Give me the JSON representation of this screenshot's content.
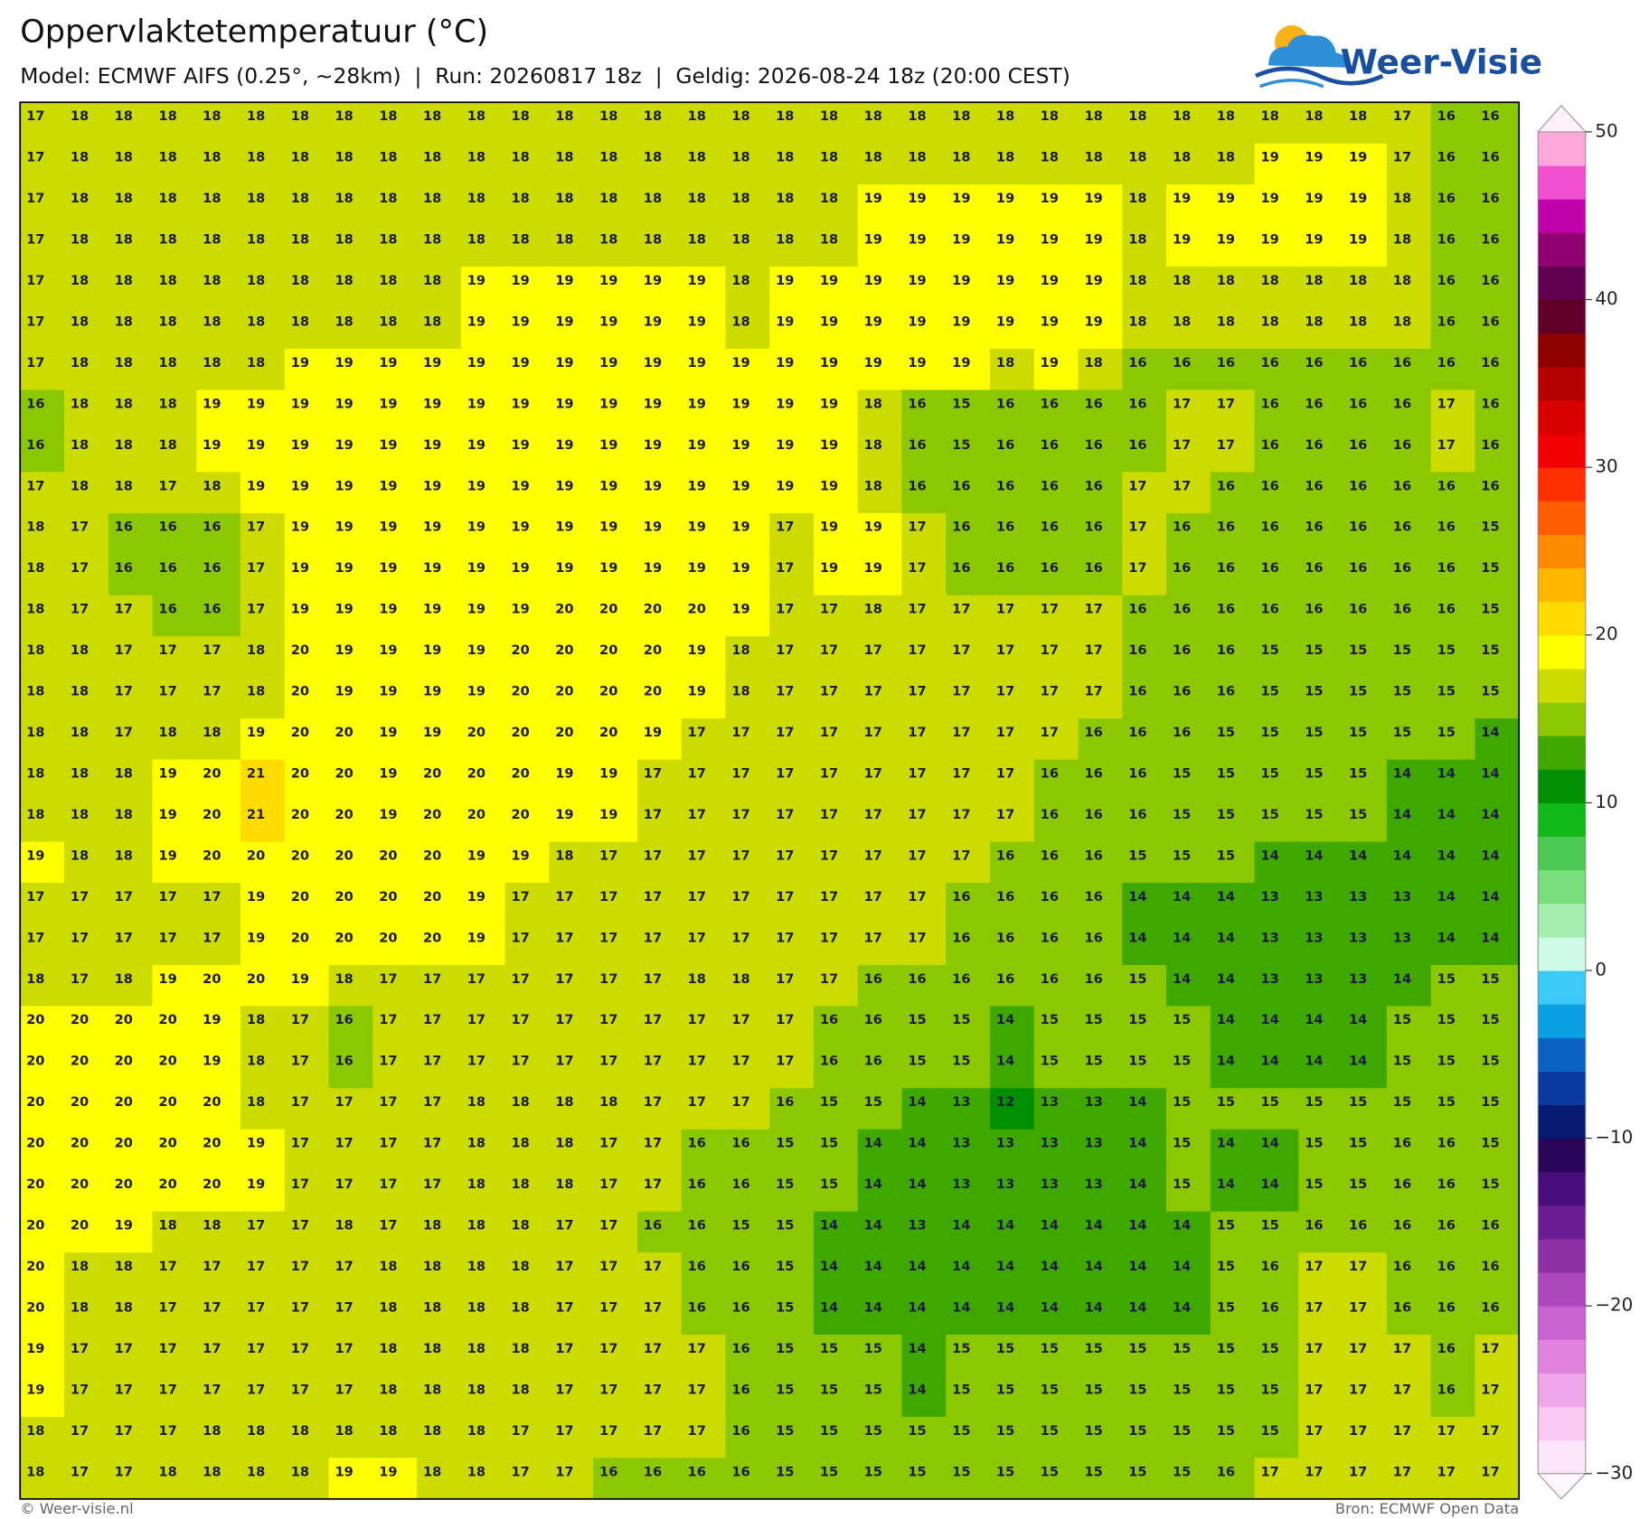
{
  "header": {
    "title": "Oppervlaktetemperatuur (°C)",
    "subtitle": "Model: ECMWF AIFS (0.25°, ~28km)  |  Run: 20260817 18z  |  Geldig: 2026-08-24 18z (20:00 CEST)",
    "logo": "Weer-Visie"
  },
  "map": {
    "values": [
      [
        17,
        18,
        18,
        18,
        18,
        18,
        18,
        18,
        18,
        18,
        18,
        18,
        18,
        18,
        18,
        18,
        18,
        18,
        18,
        18,
        18,
        18,
        18,
        18,
        18,
        18,
        18,
        18,
        18,
        18,
        18,
        17,
        16,
        16
      ],
      [
        17,
        18,
        18,
        18,
        18,
        18,
        18,
        18,
        18,
        18,
        18,
        18,
        18,
        18,
        18,
        18,
        18,
        18,
        18,
        18,
        18,
        18,
        18,
        18,
        18,
        18,
        18,
        18,
        19,
        19,
        19,
        17,
        16,
        16
      ],
      [
        17,
        18,
        18,
        18,
        18,
        18,
        18,
        18,
        18,
        18,
        18,
        18,
        18,
        18,
        18,
        18,
        18,
        18,
        18,
        19,
        19,
        19,
        19,
        19,
        19,
        18,
        19,
        19,
        19,
        19,
        19,
        18,
        16,
        16
      ],
      [
        17,
        18,
        18,
        18,
        18,
        18,
        18,
        18,
        18,
        18,
        18,
        18,
        18,
        18,
        18,
        18,
        18,
        18,
        18,
        19,
        19,
        19,
        19,
        19,
        19,
        18,
        19,
        19,
        19,
        19,
        19,
        18,
        16,
        16
      ],
      [
        17,
        18,
        18,
        18,
        18,
        18,
        18,
        18,
        18,
        18,
        19,
        19,
        19,
        19,
        19,
        19,
        18,
        19,
        19,
        19,
        19,
        19,
        19,
        19,
        19,
        18,
        18,
        18,
        18,
        18,
        18,
        18,
        16,
        16
      ],
      [
        17,
        18,
        18,
        18,
        18,
        18,
        18,
        18,
        18,
        18,
        19,
        19,
        19,
        19,
        19,
        19,
        18,
        19,
        19,
        19,
        19,
        19,
        19,
        19,
        19,
        18,
        18,
        18,
        18,
        18,
        18,
        18,
        16,
        16
      ],
      [
        17,
        18,
        18,
        18,
        18,
        18,
        19,
        19,
        19,
        19,
        19,
        19,
        19,
        19,
        19,
        19,
        19,
        19,
        19,
        19,
        19,
        19,
        18,
        19,
        18,
        16,
        16,
        16,
        16,
        16,
        16,
        16,
        16,
        16
      ],
      [
        16,
        18,
        18,
        18,
        19,
        19,
        19,
        19,
        19,
        19,
        19,
        19,
        19,
        19,
        19,
        19,
        19,
        19,
        19,
        18,
        16,
        15,
        16,
        16,
        16,
        16,
        17,
        17,
        16,
        16,
        16,
        16,
        17,
        16
      ],
      [
        16,
        18,
        18,
        18,
        19,
        19,
        19,
        19,
        19,
        19,
        19,
        19,
        19,
        19,
        19,
        19,
        19,
        19,
        19,
        18,
        16,
        15,
        16,
        16,
        16,
        16,
        17,
        17,
        16,
        16,
        16,
        16,
        17,
        16
      ],
      [
        17,
        18,
        18,
        17,
        18,
        19,
        19,
        19,
        19,
        19,
        19,
        19,
        19,
        19,
        19,
        19,
        19,
        19,
        19,
        18,
        16,
        16,
        16,
        16,
        16,
        17,
        17,
        16,
        16,
        16,
        16,
        16,
        16,
        16
      ],
      [
        18,
        17,
        16,
        16,
        16,
        17,
        19,
        19,
        19,
        19,
        19,
        19,
        19,
        19,
        19,
        19,
        19,
        17,
        19,
        19,
        17,
        16,
        16,
        16,
        16,
        17,
        16,
        16,
        16,
        16,
        16,
        16,
        16,
        15
      ],
      [
        18,
        17,
        16,
        16,
        16,
        17,
        19,
        19,
        19,
        19,
        19,
        19,
        19,
        19,
        19,
        19,
        19,
        17,
        19,
        19,
        17,
        16,
        16,
        16,
        16,
        17,
        16,
        16,
        16,
        16,
        16,
        16,
        16,
        15
      ],
      [
        18,
        17,
        17,
        16,
        16,
        17,
        19,
        19,
        19,
        19,
        19,
        19,
        20,
        20,
        20,
        20,
        19,
        17,
        17,
        18,
        17,
        17,
        17,
        17,
        17,
        16,
        16,
        16,
        16,
        16,
        16,
        16,
        16,
        15
      ],
      [
        18,
        18,
        17,
        17,
        17,
        18,
        20,
        19,
        19,
        19,
        19,
        20,
        20,
        20,
        20,
        19,
        18,
        17,
        17,
        17,
        17,
        17,
        17,
        17,
        17,
        16,
        16,
        16,
        15,
        15,
        15,
        15,
        15,
        15
      ],
      [
        18,
        18,
        17,
        17,
        17,
        18,
        20,
        19,
        19,
        19,
        19,
        20,
        20,
        20,
        20,
        19,
        18,
        17,
        17,
        17,
        17,
        17,
        17,
        17,
        17,
        16,
        16,
        16,
        15,
        15,
        15,
        15,
        15,
        15
      ],
      [
        18,
        18,
        17,
        18,
        18,
        19,
        20,
        20,
        19,
        19,
        20,
        20,
        20,
        20,
        19,
        17,
        17,
        17,
        17,
        17,
        17,
        17,
        17,
        17,
        16,
        16,
        16,
        15,
        15,
        15,
        15,
        15,
        15,
        14
      ],
      [
        18,
        18,
        18,
        19,
        20,
        21,
        20,
        20,
        19,
        20,
        20,
        20,
        19,
        19,
        17,
        17,
        17,
        17,
        17,
        17,
        17,
        17,
        17,
        16,
        16,
        16,
        15,
        15,
        15,
        15,
        15,
        14,
        14,
        14
      ],
      [
        18,
        18,
        18,
        19,
        20,
        21,
        20,
        20,
        19,
        20,
        20,
        20,
        19,
        19,
        17,
        17,
        17,
        17,
        17,
        17,
        17,
        17,
        17,
        16,
        16,
        16,
        15,
        15,
        15,
        15,
        15,
        14,
        14,
        14
      ],
      [
        19,
        18,
        18,
        19,
        20,
        20,
        20,
        20,
        20,
        20,
        19,
        19,
        18,
        17,
        17,
        17,
        17,
        17,
        17,
        17,
        17,
        17,
        16,
        16,
        16,
        15,
        15,
        15,
        14,
        14,
        14,
        14,
        14,
        14
      ],
      [
        17,
        17,
        17,
        17,
        17,
        19,
        20,
        20,
        20,
        20,
        19,
        17,
        17,
        17,
        17,
        17,
        17,
        17,
        17,
        17,
        17,
        16,
        16,
        16,
        16,
        14,
        14,
        14,
        13,
        13,
        13,
        13,
        14,
        14
      ],
      [
        17,
        17,
        17,
        17,
        17,
        19,
        20,
        20,
        20,
        20,
        19,
        17,
        17,
        17,
        17,
        17,
        17,
        17,
        17,
        17,
        17,
        16,
        16,
        16,
        16,
        14,
        14,
        14,
        13,
        13,
        13,
        13,
        14,
        14
      ],
      [
        18,
        17,
        18,
        19,
        20,
        20,
        19,
        18,
        17,
        17,
        17,
        17,
        17,
        17,
        17,
        18,
        18,
        17,
        17,
        16,
        16,
        16,
        16,
        16,
        16,
        15,
        14,
        14,
        13,
        13,
        13,
        14,
        15,
        15
      ],
      [
        20,
        20,
        20,
        20,
        19,
        18,
        17,
        16,
        17,
        17,
        17,
        17,
        17,
        17,
        17,
        17,
        17,
        17,
        16,
        16,
        15,
        15,
        14,
        15,
        15,
        15,
        15,
        14,
        14,
        14,
        14,
        15,
        15,
        15
      ],
      [
        20,
        20,
        20,
        20,
        19,
        18,
        17,
        16,
        17,
        17,
        17,
        17,
        17,
        17,
        17,
        17,
        17,
        17,
        16,
        16,
        15,
        15,
        14,
        15,
        15,
        15,
        15,
        14,
        14,
        14,
        14,
        15,
        15,
        15
      ],
      [
        20,
        20,
        20,
        20,
        20,
        18,
        17,
        17,
        17,
        17,
        18,
        18,
        18,
        18,
        17,
        17,
        17,
        16,
        15,
        15,
        14,
        13,
        12,
        13,
        13,
        14,
        15,
        15,
        15,
        15,
        15,
        15,
        15,
        15
      ],
      [
        20,
        20,
        20,
        20,
        20,
        19,
        17,
        17,
        17,
        17,
        18,
        18,
        18,
        17,
        17,
        16,
        16,
        15,
        15,
        14,
        14,
        13,
        13,
        13,
        13,
        14,
        15,
        14,
        14,
        15,
        15,
        16,
        16,
        15
      ],
      [
        20,
        20,
        20,
        20,
        20,
        19,
        17,
        17,
        17,
        17,
        18,
        18,
        18,
        17,
        17,
        16,
        16,
        15,
        15,
        14,
        14,
        13,
        13,
        13,
        13,
        14,
        15,
        14,
        14,
        15,
        15,
        16,
        16,
        15
      ],
      [
        20,
        20,
        19,
        18,
        18,
        17,
        17,
        18,
        17,
        18,
        18,
        18,
        17,
        17,
        16,
        16,
        15,
        15,
        14,
        14,
        13,
        14,
        14,
        14,
        14,
        14,
        14,
        15,
        15,
        16,
        16,
        16,
        16,
        16
      ],
      [
        20,
        18,
        18,
        17,
        17,
        17,
        17,
        17,
        18,
        18,
        18,
        18,
        17,
        17,
        17,
        16,
        16,
        15,
        14,
        14,
        14,
        14,
        14,
        14,
        14,
        14,
        14,
        15,
        16,
        17,
        17,
        16,
        16,
        16
      ],
      [
        20,
        18,
        18,
        17,
        17,
        17,
        17,
        17,
        18,
        18,
        18,
        18,
        17,
        17,
        17,
        16,
        16,
        15,
        14,
        14,
        14,
        14,
        14,
        14,
        14,
        14,
        14,
        15,
        16,
        17,
        17,
        16,
        16,
        16
      ],
      [
        19,
        17,
        17,
        17,
        17,
        17,
        17,
        17,
        18,
        18,
        18,
        18,
        17,
        17,
        17,
        17,
        16,
        15,
        15,
        15,
        14,
        15,
        15,
        15,
        15,
        15,
        15,
        15,
        15,
        17,
        17,
        17,
        16,
        17
      ],
      [
        19,
        17,
        17,
        17,
        17,
        17,
        17,
        17,
        18,
        18,
        18,
        18,
        17,
        17,
        17,
        17,
        16,
        15,
        15,
        15,
        14,
        15,
        15,
        15,
        15,
        15,
        15,
        15,
        15,
        17,
        17,
        17,
        16,
        17
      ],
      [
        18,
        17,
        17,
        17,
        18,
        18,
        18,
        18,
        18,
        18,
        18,
        17,
        17,
        17,
        17,
        17,
        16,
        15,
        15,
        15,
        15,
        15,
        15,
        15,
        15,
        15,
        15,
        15,
        15,
        17,
        17,
        17,
        17,
        17
      ],
      [
        18,
        17,
        17,
        18,
        18,
        18,
        18,
        19,
        19,
        18,
        18,
        17,
        17,
        16,
        16,
        16,
        16,
        15,
        15,
        15,
        15,
        15,
        15,
        15,
        15,
        15,
        15,
        16,
        17,
        17,
        17,
        17,
        17,
        17
      ]
    ]
  },
  "colorbar": {
    "lim": [
      -30,
      50
    ],
    "colors": [
      "#fbe6fa",
      "#f9c8f2",
      "#f0a6ea",
      "#e082de",
      "#c862d0",
      "#ac48bc",
      "#8c30a6",
      "#6a1c92",
      "#4a0e7c",
      "#2a0658",
      "#071a72",
      "#0a3aa0",
      "#0a62c2",
      "#08a0e2",
      "#3ccaf8",
      "#ccfae6",
      "#a6eeb0",
      "#78de7c",
      "#4cca54",
      "#10b818",
      "#008f00",
      "#3ea800",
      "#8cc800",
      "#ccdc00",
      "#ffff00",
      "#ffdc00",
      "#ffb800",
      "#ff8c00",
      "#ff5e00",
      "#ff3000",
      "#f00000",
      "#d80000",
      "#b40000",
      "#8c0000",
      "#600028",
      "#620050",
      "#900070",
      "#c000a8",
      "#f050d0",
      "#ffa8dc"
    ],
    "ticks": [
      50,
      40,
      30,
      20,
      10,
      0,
      {
        "value": -10,
        "label": "−10"
      },
      {
        "value": -20,
        "label": "−20"
      },
      {
        "value": -30,
        "label": "−30"
      }
    ]
  },
  "footer": {
    "left": "© Weer-visie.nl",
    "right": "Bron: ECMWF Open Data"
  }
}
